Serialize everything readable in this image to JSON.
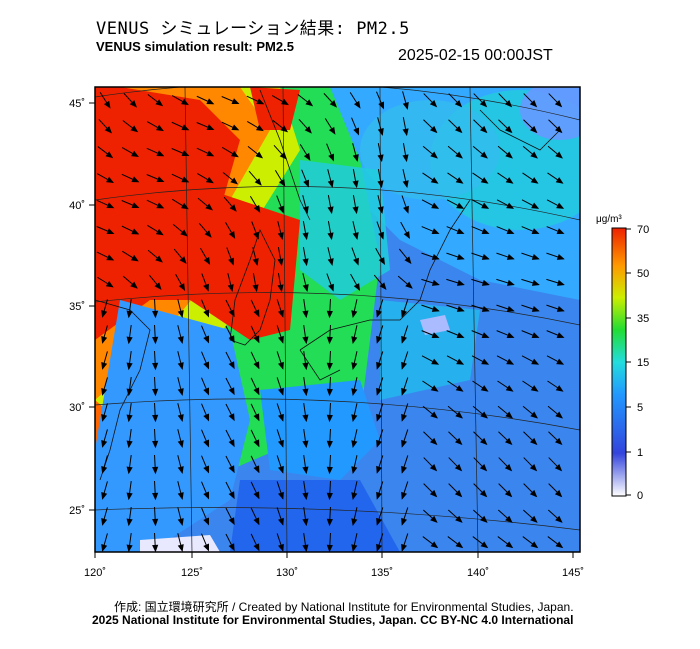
{
  "header": {
    "title_jp": "VENUS シミュレーション結果: PM2.5",
    "title_en": "VENUS simulation result: PM2.5",
    "timestamp": "2025-02-15 00:00JST"
  },
  "map": {
    "lat_labels": [
      "45˚",
      "40˚",
      "35˚",
      "30˚",
      "25˚"
    ],
    "lon_labels": [
      "120˚",
      "125˚",
      "130˚",
      "135˚",
      "140˚",
      "145˚"
    ],
    "colors": {
      "very_low": "#e8e8ff",
      "low": "#2244dd",
      "mid_low": "#3399ff",
      "mid": "#22ccdd",
      "mid_high": "#22dd44",
      "high": "#ddee00",
      "very_high": "#ff8800",
      "max": "#ee2200",
      "sea": "#3a86ee"
    }
  },
  "colorbar": {
    "unit": "μg/m³",
    "ticks": [
      "70",
      "50",
      "35",
      "15",
      "5",
      "1",
      "0"
    ]
  },
  "footer": {
    "credit": "作成: 国立環境研究所 / Created by National Institute for Environmental Studies, Japan.",
    "license": "2025 National Institute for Environmental Studies, Japan. CC BY-NC 4.0 International"
  }
}
